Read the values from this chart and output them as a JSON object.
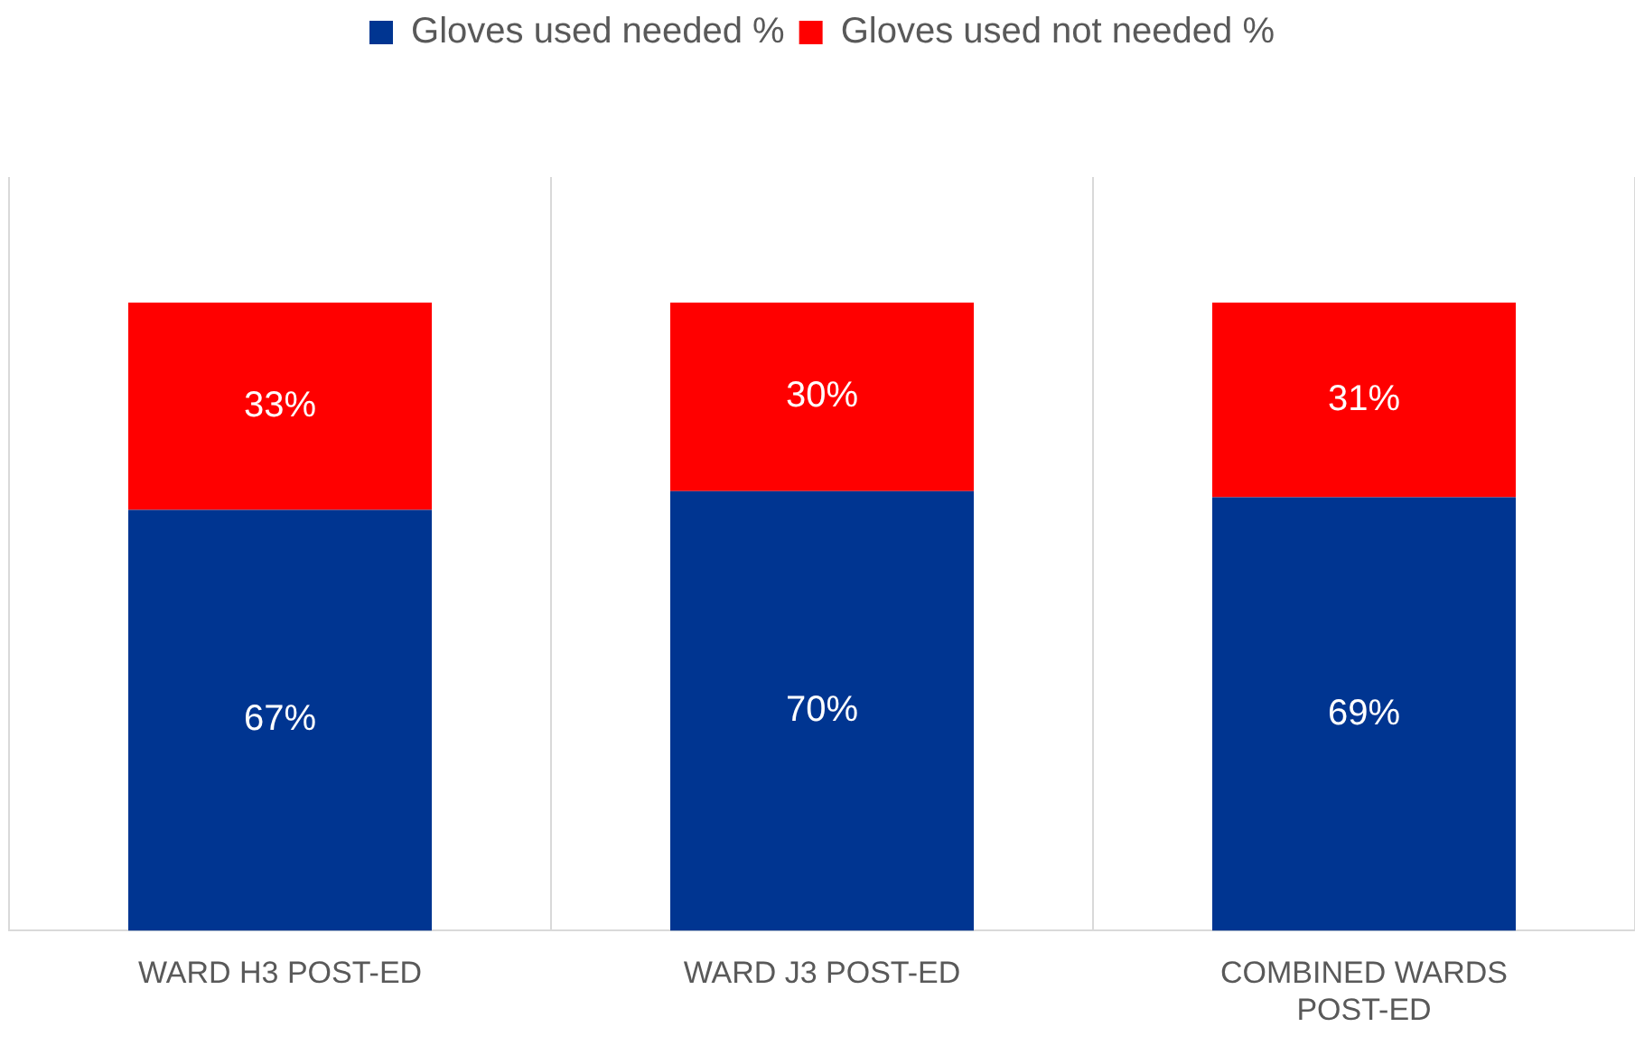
{
  "chart_data": {
    "type": "bar",
    "stacked": true,
    "categories": [
      "WARD H3 POST-ED",
      "WARD J3 POST-ED",
      "COMBINED WARDS POST-ED"
    ],
    "series": [
      {
        "name": "Gloves used needed %",
        "color": "#003591",
        "values": [
          67,
          70,
          69
        ],
        "value_labels": [
          "67%",
          "70%",
          "69%"
        ]
      },
      {
        "name": "Gloves used not needed %",
        "color": "#ff0000",
        "values": [
          33,
          30,
          31
        ],
        "value_labels": [
          "33%",
          "30%",
          "31%"
        ]
      }
    ],
    "ylim": [
      0,
      120
    ],
    "tick_labels": "x",
    "grid": "x",
    "legend": "top"
  }
}
